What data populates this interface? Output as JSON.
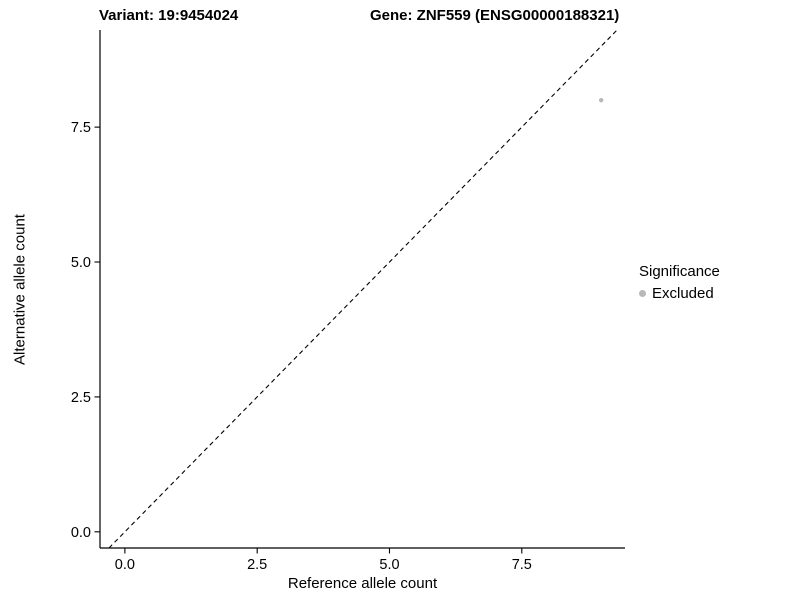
{
  "figure": {
    "background": "#ffffff"
  },
  "chart_data": {
    "type": "scatter",
    "title_left": "Variant: 19:9454024",
    "title_right": "Gene: ZNF559 (ENSG00000188321)",
    "xlabel": "Reference allele count",
    "ylabel": "Alternative allele count",
    "xlim": [
      -0.47,
      9.45
    ],
    "ylim": [
      -0.3,
      9.3
    ],
    "xticks": [
      0,
      2.5,
      5,
      7.5
    ],
    "xtick_labels": [
      "0.0",
      "2.5",
      "5.0",
      "7.5"
    ],
    "yticks": [
      0,
      2.5,
      5,
      7.5
    ],
    "ytick_labels": [
      "0.0",
      "2.5",
      "5.0",
      "7.5"
    ],
    "grid": false,
    "identity_line": {
      "style": "dashed",
      "equation": "y = x",
      "color": "#000000"
    },
    "series": [
      {
        "name": "Excluded",
        "color": "#b8b8b8",
        "marker_radius": 2.2,
        "points": [
          {
            "x": 9,
            "y": 8
          }
        ]
      }
    ],
    "legend": {
      "title": "Significance",
      "position": "right",
      "entries": [
        {
          "label": "Excluded",
          "color": "#b8b8b8"
        }
      ]
    },
    "axis_color": "#000000",
    "text_color": "#000000"
  }
}
